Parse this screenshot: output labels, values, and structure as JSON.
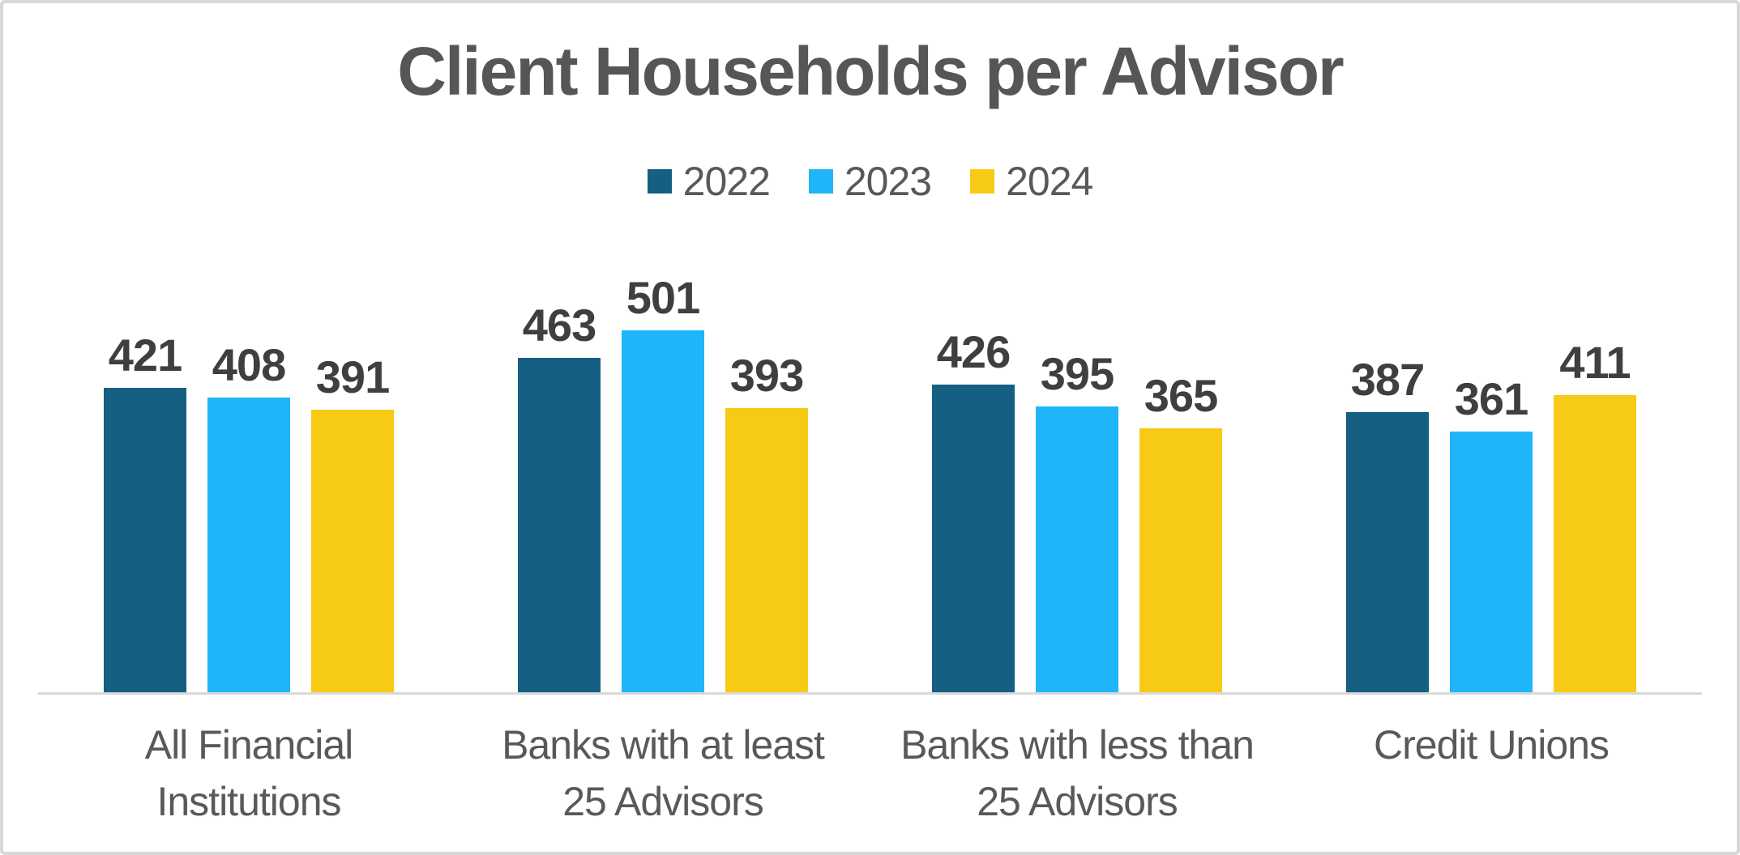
{
  "title": "Client Households per Advisor",
  "chart_data": {
    "type": "bar",
    "title": "Client Households per Advisor",
    "categories": [
      "All Financial Institutions",
      "Banks with at least 25 Advisors",
      "Banks with less than 25 Advisors",
      "Credit Unions"
    ],
    "category_lines": [
      [
        "All Financial",
        "Institutions"
      ],
      [
        "Banks with at least",
        "25 Advisors"
      ],
      [
        "Banks with less than",
        "25 Advisors"
      ],
      [
        "Credit Unions"
      ]
    ],
    "series": [
      {
        "name": "2022",
        "color": "#156082",
        "values": [
          421,
          463,
          426,
          387
        ]
      },
      {
        "name": "2023",
        "color": "#1FB5F8",
        "values": [
          408,
          501,
          395,
          361
        ]
      },
      {
        "name": "2024",
        "color": "#F7CB15",
        "values": [
          391,
          393,
          365,
          411
        ]
      }
    ],
    "ylim": [
      0,
      560
    ],
    "grid": false,
    "legend_position": "top",
    "data_labels": true,
    "axis_line_color": "#D9D9D9"
  },
  "style_colors": {
    "title_text": "#565656",
    "data_label_text": "#3F3F3F",
    "category_text": "#595959",
    "legend_text": "#595959",
    "card_border": "#D8D8D8"
  }
}
